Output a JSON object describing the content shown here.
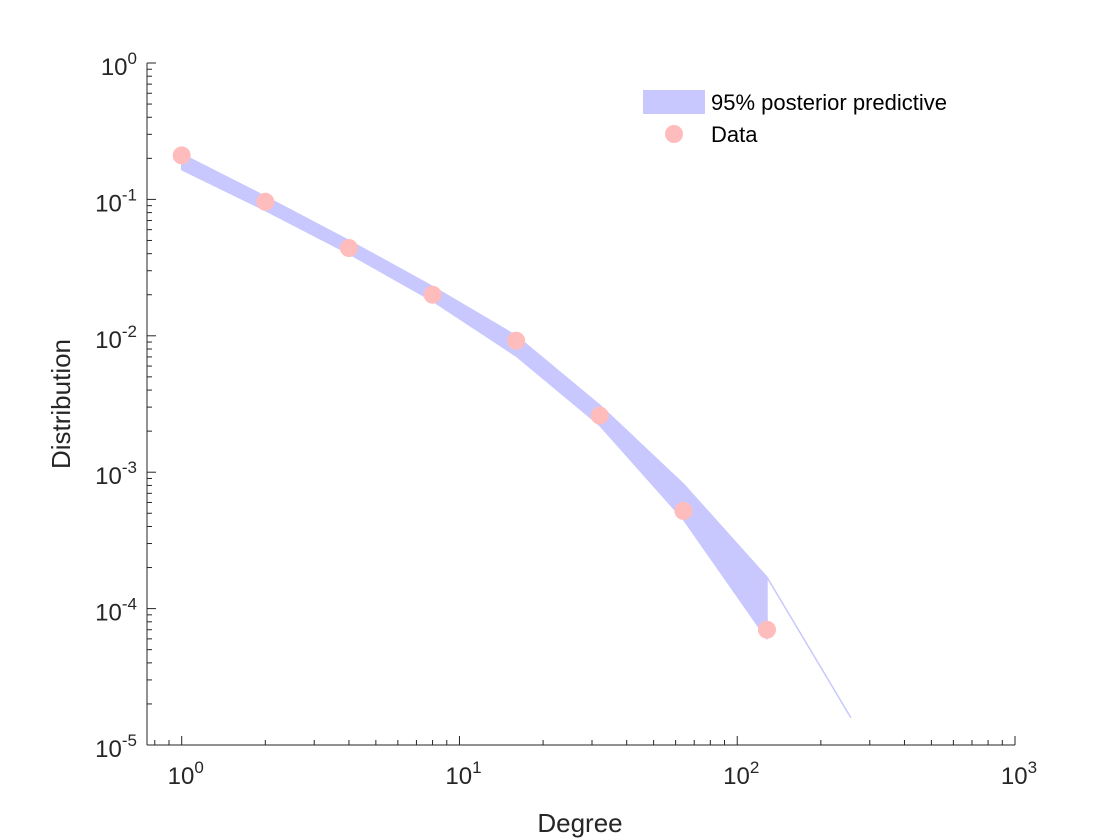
{
  "chart_data": {
    "type": "area",
    "xlabel": "Degree",
    "ylabel": "Distribution",
    "x_scale": "log",
    "y_scale": "log",
    "xlim": [
      0.75,
      1000
    ],
    "ylim": [
      1e-05,
      1
    ],
    "x_ticks": [
      {
        "base": "10",
        "exp": "0",
        "value": 1
      },
      {
        "base": "10",
        "exp": "1",
        "value": 10
      },
      {
        "base": "10",
        "exp": "2",
        "value": 100
      },
      {
        "base": "10",
        "exp": "3",
        "value": 1000
      }
    ],
    "y_ticks": [
      {
        "base": "10",
        "exp": "-5",
        "value": 1e-05
      },
      {
        "base": "10",
        "exp": "-4",
        "value": 0.0001
      },
      {
        "base": "10",
        "exp": "-3",
        "value": 0.001
      },
      {
        "base": "10",
        "exp": "-2",
        "value": 0.01
      },
      {
        "base": "10",
        "exp": "-1",
        "value": 0.1
      },
      {
        "base": "10",
        "exp": "0",
        "value": 1
      }
    ],
    "grid": false,
    "legend_position": "top-right",
    "colors": {
      "band": "#c8c8ff",
      "points": "#ffbcbc",
      "axis": "#262626"
    },
    "series": [
      {
        "name": "95% posterior predictive",
        "kind": "band",
        "x": [
          1,
          2,
          4,
          8,
          16,
          32,
          64,
          128,
          128,
          256
        ],
        "upper": [
          0.215,
          0.105,
          0.05,
          0.023,
          0.01,
          0.0031,
          0.00082,
          0.00017,
          0.00017,
          1.6e-05
        ],
        "lower": [
          0.165,
          0.083,
          0.04,
          0.018,
          0.0071,
          0.0022,
          0.00045,
          6e-05,
          0.00017,
          1.6e-05
        ]
      },
      {
        "name": "Data",
        "kind": "scatter",
        "x": [
          1,
          2,
          4,
          8,
          16,
          32,
          64,
          128
        ],
        "y": [
          0.21,
          0.096,
          0.044,
          0.02,
          0.0092,
          0.0026,
          0.00052,
          7e-05
        ]
      }
    ]
  }
}
